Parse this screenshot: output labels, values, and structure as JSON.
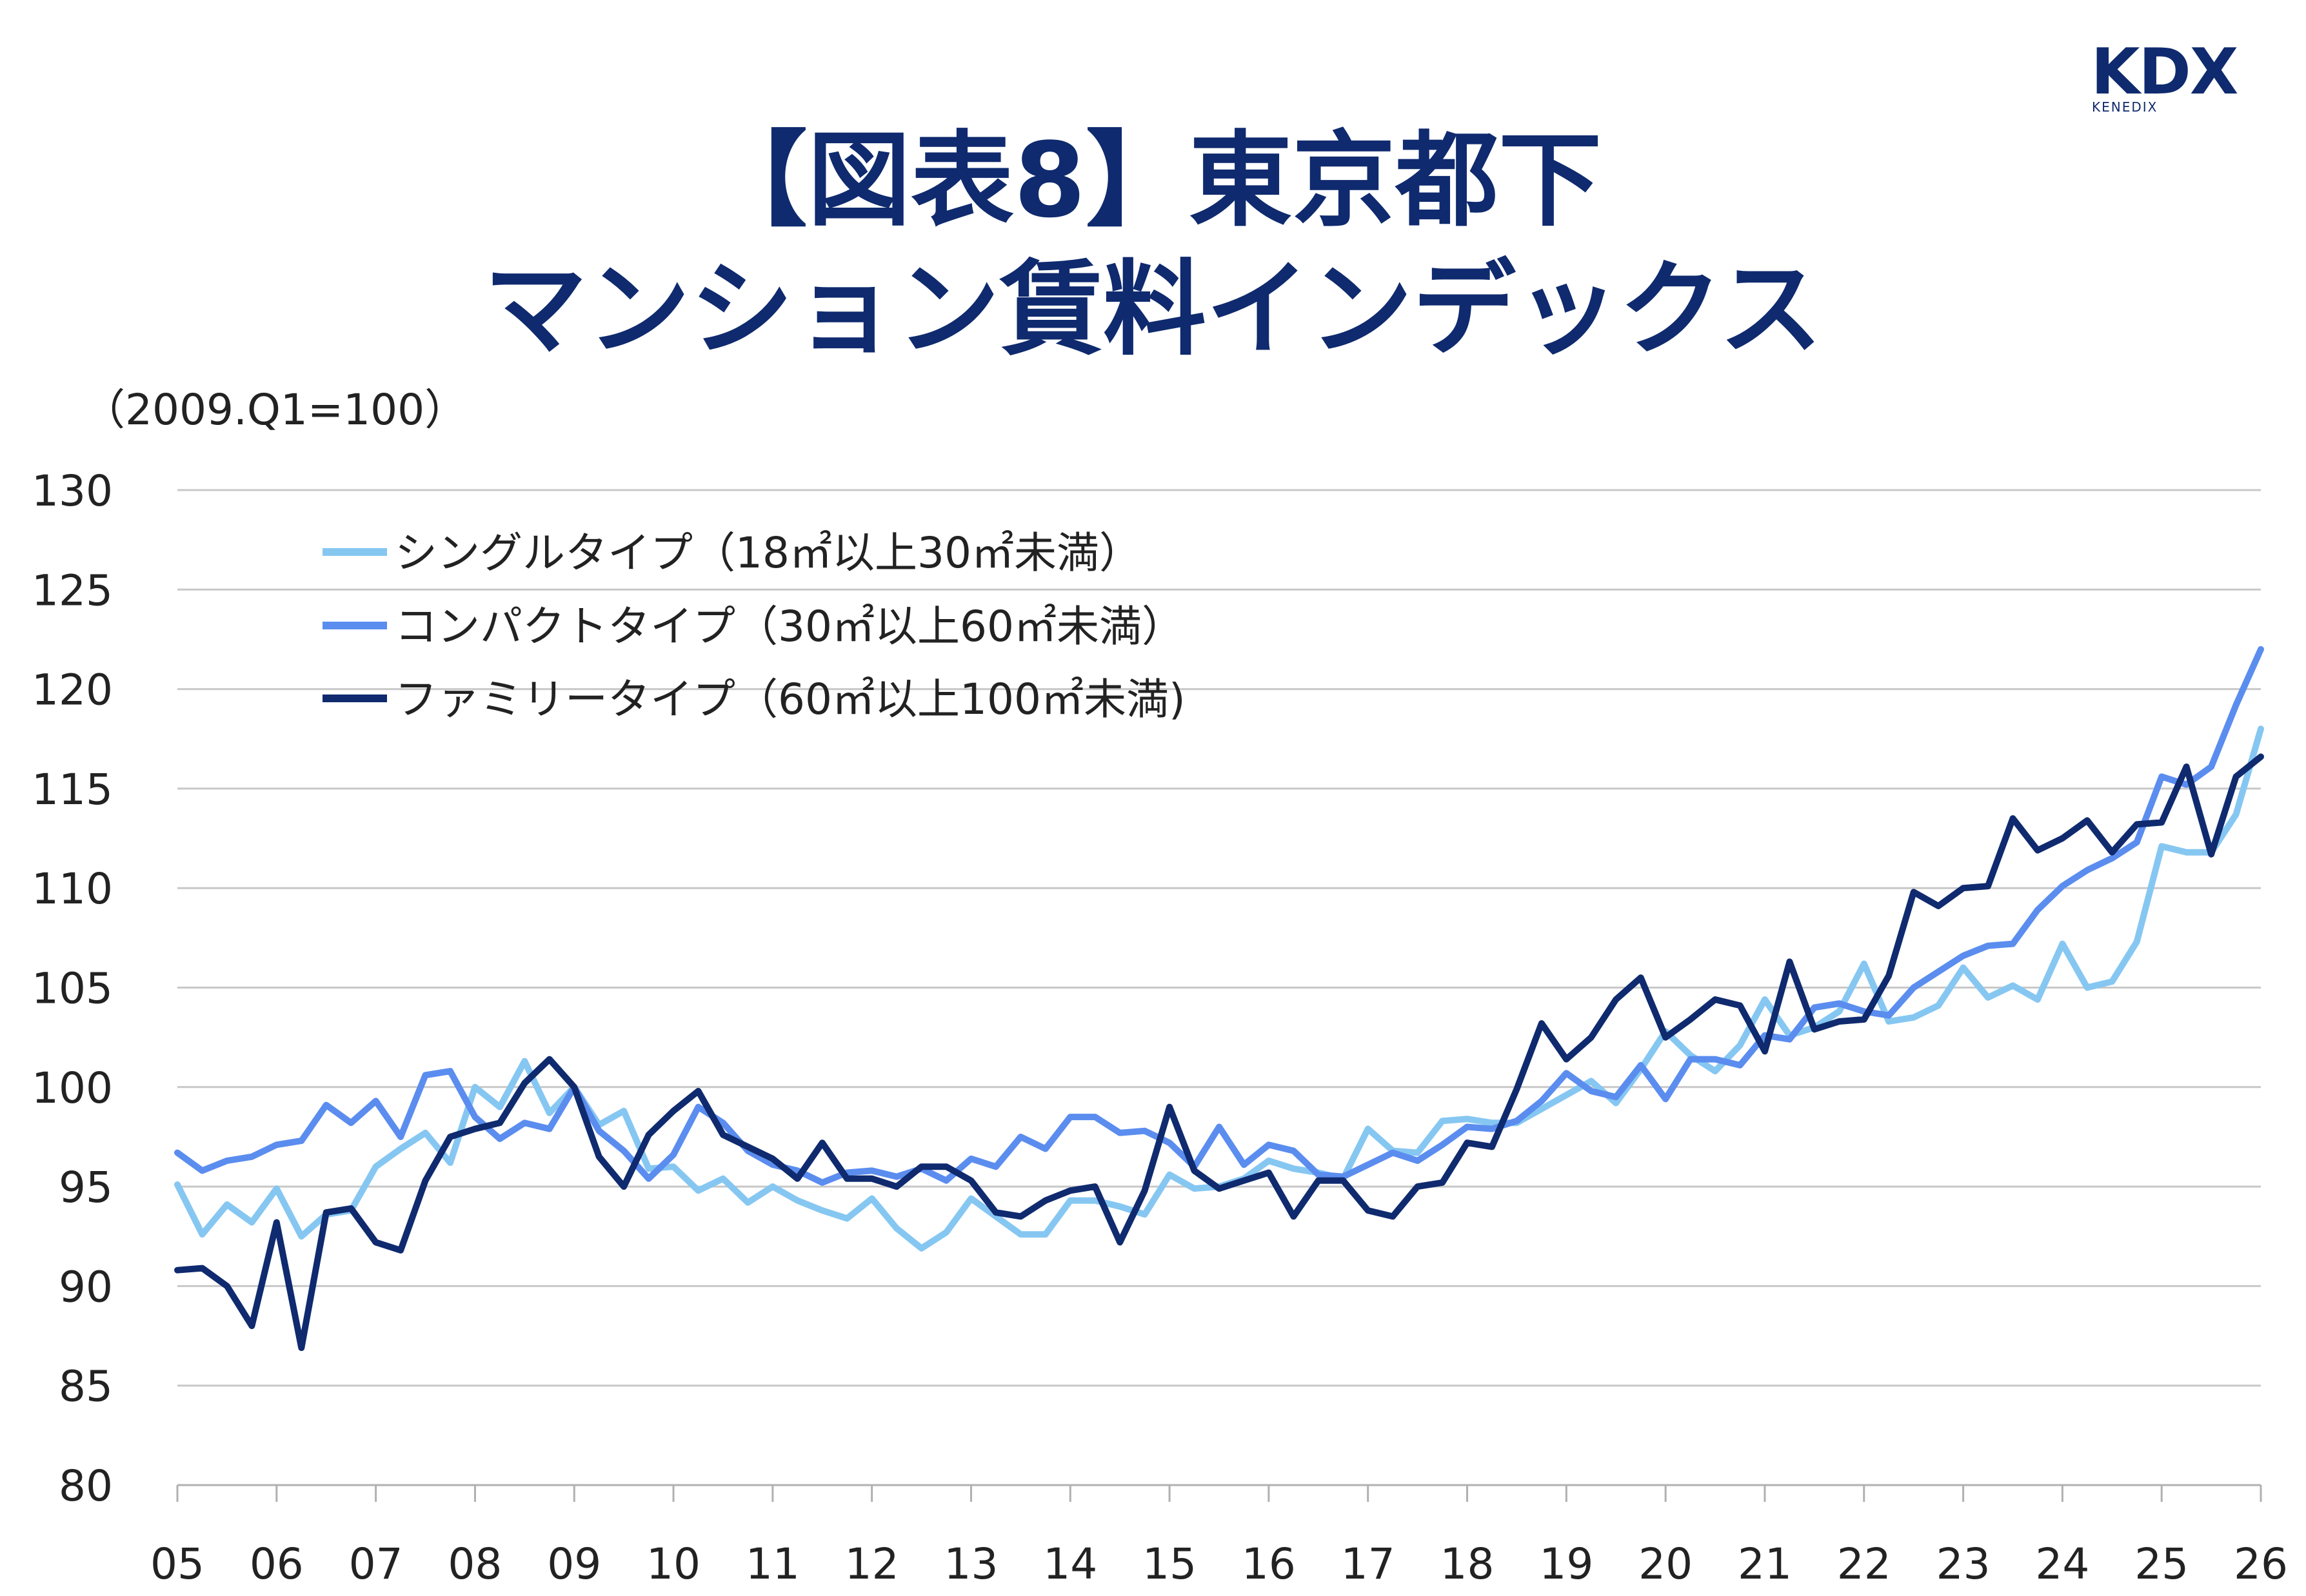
{
  "logo": {
    "mark": "KDX",
    "name": "KENEDIX"
  },
  "title": {
    "line1": "【図表8】東京都下",
    "line2": "マンション賃料インデックス"
  },
  "base_note": "（2009.Q1=100）",
  "colors": {
    "title": "#0f2a6e",
    "grid": "#c8c8c8",
    "single": "#86c7f2",
    "compact": "#5b8def",
    "family": "#0f2a6e"
  },
  "chart_data": {
    "type": "line",
    "x_tick_labels": [
      "05",
      "06",
      "07",
      "08",
      "09",
      "10",
      "11",
      "12",
      "13",
      "14",
      "15",
      "16",
      "17",
      "18",
      "19",
      "20",
      "21",
      "22",
      "23",
      "24",
      "25",
      "26"
    ],
    "y_tick_labels": [
      "80",
      "85",
      "90",
      "95",
      "100",
      "105",
      "110",
      "115",
      "120",
      "125",
      "130"
    ],
    "ylim": [
      80,
      130
    ],
    "xlim": [
      2005.0,
      2026.0
    ],
    "grid": true,
    "legend_position": "top-left",
    "series": [
      {
        "name": "シングルタイプ（18㎡以上30㎡未満）",
        "color": "#86c7f2",
        "x": [
          2005.0,
          2005.25,
          2005.5,
          2005.75,
          2006.0,
          2006.25,
          2006.5,
          2006.75,
          2007.0,
          2007.25,
          2007.5,
          2007.75,
          2008.0,
          2008.25,
          2008.5,
          2008.75,
          2009.0,
          2009.25,
          2009.5,
          2009.75,
          2010.0,
          2010.25,
          2010.5,
          2010.75,
          2011.0,
          2011.25,
          2011.5,
          2011.75,
          2012.0,
          2012.25,
          2012.5,
          2012.75,
          2013.0,
          2013.25,
          2013.5,
          2013.75,
          2014.0,
          2014.25,
          2014.5,
          2014.75,
          2015.0,
          2015.25,
          2015.5,
          2015.75,
          2016.0,
          2016.25,
          2016.5,
          2016.75,
          2017.0,
          2017.25,
          2017.5,
          2017.75,
          2018.0,
          2018.25,
          2018.5,
          2018.75,
          2019.0,
          2019.25,
          2019.5,
          2019.75,
          2020.0,
          2020.25,
          2020.5,
          2020.75,
          2021.0,
          2021.25,
          2021.5,
          2021.75,
          2022.0,
          2022.25,
          2022.5,
          2022.75,
          2023.0,
          2023.25,
          2023.5,
          2023.75,
          2024.0,
          2024.25,
          2024.5,
          2024.75,
          2025.0,
          2025.25,
          2025.5,
          2025.75,
          2026.0
        ],
        "y": [
          95.1,
          92.6,
          94.1,
          93.2,
          94.9,
          92.5,
          93.6,
          93.8,
          96.0,
          96.9,
          97.7,
          96.2,
          100.0,
          99.0,
          101.3,
          98.7,
          100.0,
          98.1,
          98.8,
          95.9,
          96.0,
          94.8,
          95.4,
          94.2,
          95.0,
          94.3,
          93.8,
          93.4,
          94.4,
          92.9,
          91.9,
          92.7,
          94.4,
          93.5,
          92.6,
          92.6,
          94.3,
          94.3,
          94.0,
          93.6,
          95.6,
          94.9,
          95.0,
          95.4,
          96.3,
          95.9,
          95.7,
          95.4,
          97.9,
          96.8,
          96.7,
          98.3,
          98.4,
          98.2,
          98.2,
          98.9,
          99.6,
          100.3,
          99.2,
          100.9,
          102.8,
          101.6,
          100.8,
          102.1,
          104.4,
          102.6,
          103.0,
          103.8,
          106.2,
          103.3,
          103.5,
          104.1,
          106.0,
          104.5,
          105.1,
          104.4,
          107.2,
          105.0,
          105.3,
          107.3,
          112.1,
          111.8,
          111.8,
          113.7,
          118.0
        ]
      },
      {
        "name": "コンパクトタイプ（30㎡以上60㎡未満）",
        "color": "#5b8def",
        "x": [
          2005.0,
          2005.25,
          2005.5,
          2005.75,
          2006.0,
          2006.25,
          2006.5,
          2006.75,
          2007.0,
          2007.25,
          2007.5,
          2007.75,
          2008.0,
          2008.25,
          2008.5,
          2008.75,
          2009.0,
          2009.25,
          2009.5,
          2009.75,
          2010.0,
          2010.25,
          2010.5,
          2010.75,
          2011.0,
          2011.25,
          2011.5,
          2011.75,
          2012.0,
          2012.25,
          2012.5,
          2012.75,
          2013.0,
          2013.25,
          2013.5,
          2013.75,
          2014.0,
          2014.25,
          2014.5,
          2014.75,
          2015.0,
          2015.25,
          2015.5,
          2015.75,
          2016.0,
          2016.25,
          2016.5,
          2016.75,
          2017.0,
          2017.25,
          2017.5,
          2017.75,
          2018.0,
          2018.25,
          2018.5,
          2018.75,
          2019.0,
          2019.25,
          2019.5,
          2019.75,
          2020.0,
          2020.25,
          2020.5,
          2020.75,
          2021.0,
          2021.25,
          2021.5,
          2021.75,
          2022.0,
          2022.25,
          2022.5,
          2022.75,
          2023.0,
          2023.25,
          2023.5,
          2023.75,
          2024.0,
          2024.25,
          2024.5,
          2024.75,
          2025.0,
          2025.25,
          2025.5,
          2025.75,
          2026.0
        ],
        "y": [
          96.7,
          95.8,
          96.3,
          96.5,
          97.1,
          97.3,
          99.1,
          98.2,
          99.3,
          97.5,
          100.6,
          100.8,
          98.5,
          97.4,
          98.2,
          97.9,
          100.0,
          97.8,
          96.8,
          95.4,
          96.6,
          99.0,
          98.2,
          96.8,
          96.1,
          95.8,
          95.2,
          95.7,
          95.8,
          95.5,
          95.9,
          95.3,
          96.4,
          96.0,
          97.5,
          96.9,
          98.5,
          98.5,
          97.7,
          97.8,
          97.2,
          96.0,
          98.0,
          96.1,
          97.1,
          96.8,
          95.6,
          95.5,
          96.1,
          96.7,
          96.3,
          97.1,
          98.0,
          97.9,
          98.3,
          99.3,
          100.7,
          99.8,
          99.5,
          101.1,
          99.4,
          101.4,
          101.4,
          101.1,
          102.6,
          102.4,
          104.0,
          104.2,
          103.8,
          103.6,
          105.0,
          105.8,
          106.6,
          107.1,
          107.2,
          108.9,
          110.1,
          110.9,
          111.5,
          112.3,
          115.6,
          115.2,
          116.1,
          119.2,
          122.0
        ]
      },
      {
        "name": "ファミリータイプ（60㎡以上100㎡未満)",
        "color": "#0f2a6e",
        "x": [
          2005.0,
          2005.25,
          2005.5,
          2005.75,
          2006.0,
          2006.25,
          2006.5,
          2006.75,
          2007.0,
          2007.25,
          2007.5,
          2007.75,
          2008.0,
          2008.25,
          2008.5,
          2008.75,
          2009.0,
          2009.25,
          2009.5,
          2009.75,
          2010.0,
          2010.25,
          2010.5,
          2010.75,
          2011.0,
          2011.25,
          2011.5,
          2011.75,
          2012.0,
          2012.25,
          2012.5,
          2012.75,
          2013.0,
          2013.25,
          2013.5,
          2013.75,
          2014.0,
          2014.25,
          2014.5,
          2014.75,
          2015.0,
          2015.25,
          2015.5,
          2015.75,
          2016.0,
          2016.25,
          2016.5,
          2016.75,
          2017.0,
          2017.25,
          2017.5,
          2017.75,
          2018.0,
          2018.25,
          2018.5,
          2018.75,
          2019.0,
          2019.25,
          2019.5,
          2019.75,
          2020.0,
          2020.25,
          2020.5,
          2020.75,
          2021.0,
          2021.25,
          2021.5,
          2021.75,
          2022.0,
          2022.25,
          2022.5,
          2022.75,
          2023.0,
          2023.25,
          2023.5,
          2023.75,
          2024.0,
          2024.25,
          2024.5,
          2024.75,
          2025.0,
          2025.25,
          2025.5,
          2025.75,
          2026.0
        ],
        "y": [
          90.8,
          90.9,
          90.0,
          88.0,
          93.2,
          86.9,
          93.7,
          93.9,
          92.2,
          91.8,
          95.3,
          97.5,
          97.9,
          98.2,
          100.2,
          101.4,
          100.0,
          96.5,
          95.0,
          97.6,
          98.8,
          99.8,
          97.6,
          97.0,
          96.4,
          95.4,
          97.2,
          95.4,
          95.4,
          95.0,
          96.0,
          96.0,
          95.3,
          93.7,
          93.5,
          94.3,
          94.8,
          95.0,
          92.2,
          94.8,
          99.0,
          95.8,
          94.9,
          95.3,
          95.7,
          93.5,
          95.3,
          95.3,
          93.8,
          93.5,
          95.0,
          95.2,
          97.2,
          97.0,
          99.9,
          103.2,
          101.4,
          102.5,
          104.4,
          105.5,
          102.5,
          103.4,
          104.4,
          104.1,
          101.8,
          106.3,
          102.9,
          103.3,
          103.4,
          105.6,
          109.8,
          109.1,
          110.0,
          110.1,
          113.5,
          111.9,
          112.5,
          113.4,
          111.8,
          113.2,
          113.3,
          116.1,
          111.7,
          115.6,
          116.6
        ]
      }
    ]
  }
}
